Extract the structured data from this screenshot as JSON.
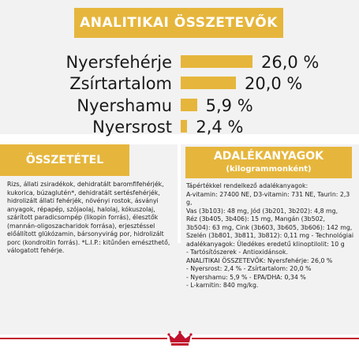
{
  "analytic": {
    "title": "ANALITIKAI ÖSSZETEVŐK",
    "rows": [
      {
        "label": "Nyersfehérje",
        "value": "26,0 %",
        "percent": 26.0
      },
      {
        "label": "Zsírtartalom",
        "value": "20,0 %",
        "percent": 20.0
      },
      {
        "label": "Nyershamu",
        "value": "5,9 %",
        "percent": 5.9
      },
      {
        "label": "Nyersrost",
        "value": "2,4 %",
        "percent": 2.4
      }
    ]
  },
  "composition": {
    "title": "ÖSSZETÉTEL",
    "text": "Rizs, állati zsiradékok, dehidratált baromfifehérjék,\nkukorica, búzaglutén*, dehidratált sertésfehérjék,\nhidrolizált állati fehérjék, növényi rostok, ásványi\nanyagok, répapép, szójaolaj, halolaj, kókuszolaj,\nszárított paradicsompép (likopin forrás), élesztők\n(mannán-oligoszacharidok forrása), erjesztéssel\nelőállított glükózamin, bársonyvirág por, hidrolizált\nporc (kondroitin forrás). *L.I.P.: kitűnően emészthető,\nválogatott fehérje."
  },
  "additives": {
    "title": "ADALÉKANYAGOK",
    "subtitle": "(kilogrammonként)",
    "text": "Tápértékkel rendelkező adalékanyagok:\nA-vitamin: 27400 NE, D3-vitamin: 731 NE, Taurin: 2,3 g,\nVas (3b103): 48 mg, Jód (3b201, 3b202): 4,8 mg,\nRéz (3b405, 3b406): 15 mg, Mangán (3b502,\n3b504): 63 mg, Cink (3b603, 3b605, 3b606): 142 mg,\nSzelén (3b801, 3b811, 3b812): 0,11 mg - Technológiai\nadalékanyagok: Üledékes eredetű klinoptilolit: 10 g\n- Tartósítószerek - Antioxidánsok.\nANALITIKAI ÖSSZETEVŐK: Nyersfehérje: 26,0 %\n- Nyersrost: 2,4 % - Zsírtartalom: 20,0 %\n- Nyershamu: 5,9 % - EPA/DHA: 0,34 %\n- L-karnitin: 840 mg/kg."
  },
  "colors": {
    "accent": "#e6b63c",
    "brand_red": "#c0102d",
    "panel_bg": "#f2f2f2"
  },
  "logo": {
    "icon": "crown-icon"
  }
}
